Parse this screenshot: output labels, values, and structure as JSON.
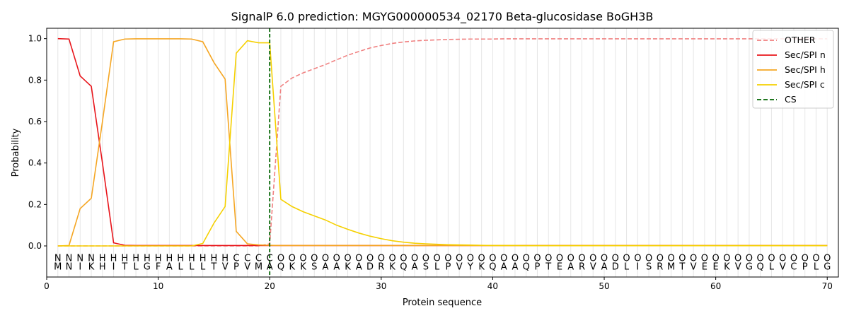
{
  "chart_data": {
    "type": "line",
    "title": "SignalP 6.0 prediction: MGYG000000534_02170 Beta-glucosidase BoGH3B",
    "xlabel": "Protein sequence",
    "ylabel": "Probability",
    "xlim": [
      0,
      71
    ],
    "ylim": [
      -0.15,
      1.05
    ],
    "xticks": [
      0,
      10,
      20,
      30,
      40,
      50,
      60,
      70
    ],
    "yticks": [
      0.0,
      0.2,
      0.4,
      0.6,
      0.8,
      1.0
    ],
    "xtick_labels": [
      "0",
      "10",
      "20",
      "30",
      "40",
      "50",
      "60",
      "70"
    ],
    "ytick_labels": [
      "0.0",
      "0.2",
      "0.4",
      "0.6",
      "0.8",
      "1.0"
    ],
    "grid": "vertical lines at each residue",
    "legend_position": "top-right",
    "sequence": [
      "M",
      "N",
      "I",
      "K",
      "H",
      "I",
      "T",
      "L",
      "G",
      "F",
      "A",
      "L",
      "L",
      "L",
      "T",
      "V",
      "P",
      "V",
      "M",
      "A",
      "Q",
      "K",
      "K",
      "S",
      "A",
      "A",
      "K",
      "A",
      "D",
      "R",
      "K",
      "Q",
      "A",
      "S",
      "L",
      "P",
      "V",
      "Y",
      "K",
      "Q",
      "A",
      "A",
      "Q",
      "P",
      "T",
      "E",
      "A",
      "R",
      "V",
      "A",
      "D",
      "L",
      "I",
      "S",
      "R",
      "M",
      "T",
      "V",
      "E",
      "E",
      "K",
      "V",
      "G",
      "Q",
      "L",
      "V",
      "C",
      "P",
      "L",
      "G"
    ],
    "labels": [
      "N",
      "N",
      "N",
      "N",
      "H",
      "H",
      "H",
      "H",
      "H",
      "H",
      "H",
      "H",
      "H",
      "H",
      "H",
      "H",
      "C",
      "C",
      "C",
      "C",
      "O",
      "O",
      "O",
      "O",
      "O",
      "O",
      "O",
      "O",
      "O",
      "O",
      "O",
      "O",
      "O",
      "O",
      "O",
      "O",
      "O",
      "O",
      "O",
      "O",
      "O",
      "O",
      "O",
      "O",
      "O",
      "O",
      "O",
      "O",
      "O",
      "O",
      "O",
      "O",
      "O",
      "O",
      "O",
      "O",
      "O",
      "O",
      "O",
      "O",
      "O",
      "O",
      "O",
      "O",
      "O",
      "O",
      "O",
      "O",
      "O",
      "O"
    ],
    "label_colors": {
      "N": "#e8141a",
      "H": "#f5a623",
      "C": "#f5c400",
      "O": "#808080"
    },
    "series": [
      {
        "name": "OTHER",
        "color": "#f08080",
        "dash": "dashed",
        "values": [
          0,
          0,
          0,
          0,
          0,
          0,
          0,
          0,
          0,
          0,
          0,
          0,
          0,
          0,
          0,
          0,
          0,
          0,
          0,
          0.01,
          0.77,
          0.81,
          0.835,
          0.855,
          0.875,
          0.898,
          0.92,
          0.938,
          0.955,
          0.967,
          0.977,
          0.984,
          0.989,
          0.992,
          0.994,
          0.996,
          0.997,
          0.998,
          0.998,
          0.998,
          0.999,
          0.999,
          0.999,
          0.999,
          0.999,
          0.999,
          0.999,
          0.999,
          0.999,
          0.999,
          0.999,
          0.999,
          0.999,
          0.999,
          0.999,
          0.999,
          0.999,
          0.999,
          0.999,
          0.999,
          0.999,
          0.999,
          0.999,
          0.999,
          0.999,
          0.999,
          0.999,
          0.999,
          0.999,
          0.999
        ]
      },
      {
        "name": "Sec/SPI n",
        "color": "#e8141a",
        "dash": "solid",
        "values": [
          1.0,
          0.998,
          0.82,
          0.77,
          0.4,
          0.015,
          0.003,
          0.002,
          0.002,
          0.002,
          0.002,
          0.002,
          0.002,
          0.002,
          0.002,
          0.002,
          0.002,
          0.002,
          0.002,
          0.002,
          0.002,
          0.002,
          0.002,
          0.002,
          0.002,
          0.002,
          0.002,
          0.002,
          0.002,
          0.002,
          0.002,
          0.002,
          0.002,
          0.002,
          0.002,
          0.002,
          0.002,
          0.002,
          0.002,
          0.002,
          0.002,
          0.002,
          0.002,
          0.002,
          0.002,
          0.002,
          0.002,
          0.002,
          0.002,
          0.002,
          0.002,
          0.002,
          0.002,
          0.002,
          0.002,
          0.002,
          0.002,
          0.002,
          0.002,
          0.002,
          0.002,
          0.002,
          0.002,
          0.002,
          0.002,
          0.002,
          0.002,
          0.002,
          0.002,
          0.002
        ]
      },
      {
        "name": "Sec/SPI h",
        "color": "#f5a623",
        "dash": "solid",
        "values": [
          0.0,
          0.002,
          0.18,
          0.23,
          0.6,
          0.985,
          0.998,
          0.999,
          0.999,
          0.999,
          0.999,
          0.999,
          0.998,
          0.985,
          0.885,
          0.805,
          0.07,
          0.01,
          0.005,
          0.003,
          0.002,
          0.002,
          0.002,
          0.002,
          0.002,
          0.002,
          0.002,
          0.002,
          0.002,
          0.002,
          0.002,
          0.002,
          0.002,
          0.002,
          0.002,
          0.002,
          0.002,
          0.002,
          0.002,
          0.002,
          0.002,
          0.002,
          0.002,
          0.002,
          0.002,
          0.002,
          0.002,
          0.002,
          0.002,
          0.002,
          0.002,
          0.002,
          0.002,
          0.002,
          0.002,
          0.002,
          0.002,
          0.002,
          0.002,
          0.002,
          0.002,
          0.002,
          0.002,
          0.002,
          0.002,
          0.002,
          0.002,
          0.002,
          0.002,
          0.002
        ]
      },
      {
        "name": "Sec/SPI c",
        "color": "#f5d000",
        "dash": "solid",
        "values": [
          0,
          0,
          0,
          0,
          0,
          0,
          0,
          0,
          0,
          0,
          0,
          0,
          0,
          0.012,
          0.11,
          0.19,
          0.93,
          0.99,
          0.98,
          0.98,
          0.225,
          0.19,
          0.165,
          0.145,
          0.125,
          0.1,
          0.08,
          0.062,
          0.047,
          0.035,
          0.025,
          0.018,
          0.013,
          0.01,
          0.008,
          0.006,
          0.005,
          0.004,
          0.003,
          0.002,
          0.002,
          0.002,
          0.001,
          0.001,
          0.001,
          0.001,
          0.001,
          0.001,
          0.001,
          0.001,
          0.001,
          0.001,
          0.001,
          0.001,
          0.001,
          0.001,
          0.001,
          0.001,
          0.001,
          0.001,
          0.001,
          0.001,
          0.001,
          0.001,
          0.001,
          0.001,
          0.001,
          0.001,
          0.001,
          0.001
        ]
      }
    ],
    "cs": {
      "name": "CS",
      "x": 20,
      "color": "#006400",
      "dash": "dashed"
    }
  }
}
